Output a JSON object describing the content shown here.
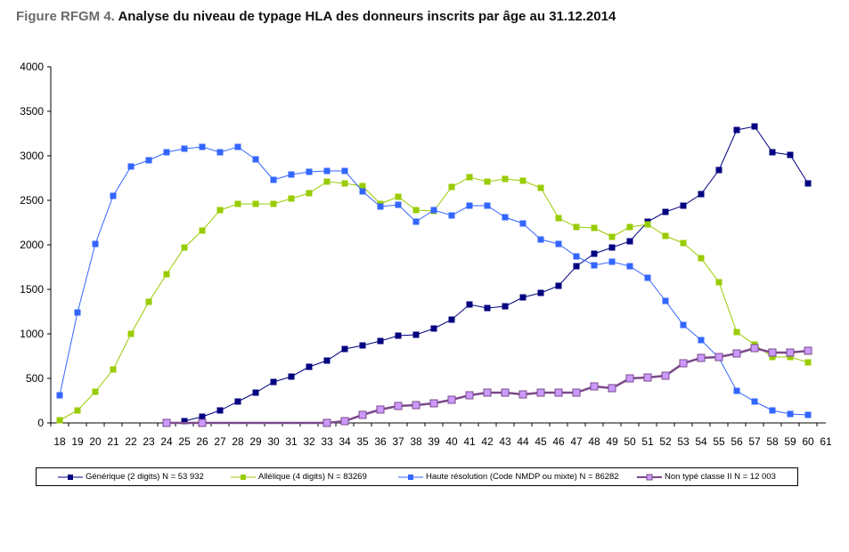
{
  "figure": {
    "label": "Figure RFGM 4.",
    "title": "Analyse du niveau de typage HLA des donneurs inscrits par âge au 31.12.2014"
  },
  "chart_data": {
    "type": "line",
    "title": "Analyse du niveau de typage HLA des donneurs inscrits par âge au 31.12.2014",
    "xlabel": "",
    "ylabel": "",
    "x": [
      18,
      19,
      20,
      21,
      22,
      23,
      24,
      25,
      26,
      27,
      28,
      29,
      30,
      31,
      32,
      33,
      34,
      35,
      36,
      37,
      38,
      39,
      40,
      41,
      42,
      43,
      44,
      45,
      46,
      47,
      48,
      49,
      50,
      51,
      52,
      53,
      54,
      55,
      56,
      57,
      58,
      59,
      60,
      61
    ],
    "xlim": [
      18,
      61
    ],
    "ylim": [
      0,
      4000
    ],
    "yticks": [
      0,
      500,
      1000,
      1500,
      2000,
      2500,
      3000,
      3500,
      4000
    ],
    "grid": false,
    "legend_position": "bottom",
    "series": [
      {
        "name": "Générique (2 digits) N = 53 932",
        "color": "#000080",
        "marker": "square",
        "x": [
          25,
          26,
          27,
          28,
          29,
          30,
          31,
          32,
          33,
          34,
          35,
          36,
          37,
          38,
          39,
          40,
          41,
          42,
          43,
          44,
          45,
          46,
          47,
          48,
          49,
          50,
          51,
          52,
          53,
          54,
          55,
          56,
          57,
          58,
          59,
          60
        ],
        "values": [
          20,
          70,
          140,
          240,
          340,
          460,
          520,
          630,
          700,
          830,
          870,
          920,
          980,
          990,
          1060,
          1160,
          1330,
          1290,
          1310,
          1410,
          1460,
          1540,
          1760,
          1900,
          1970,
          2040,
          2260,
          2370,
          2440,
          2570,
          2840,
          3290,
          3330,
          3040,
          3010,
          2690
        ]
      },
      {
        "name": "Allélique (4 digits) N = 83269",
        "color": "#99CC00",
        "marker": "square",
        "x": [
          18,
          19,
          20,
          21,
          22,
          23,
          24,
          25,
          26,
          27,
          28,
          29,
          30,
          31,
          32,
          33,
          34,
          35,
          36,
          37,
          38,
          39,
          40,
          41,
          42,
          43,
          44,
          45,
          46,
          47,
          48,
          49,
          50,
          51,
          52,
          53,
          54,
          55,
          56,
          57,
          58,
          59,
          60
        ],
        "values": [
          30,
          140,
          350,
          600,
          1000,
          1360,
          1670,
          1970,
          2160,
          2390,
          2460,
          2460,
          2460,
          2520,
          2580,
          2710,
          2690,
          2660,
          2460,
          2540,
          2390,
          2380,
          2650,
          2760,
          2710,
          2740,
          2720,
          2640,
          2300,
          2200,
          2190,
          2090,
          2200,
          2230,
          2100,
          2020,
          1850,
          1580,
          1020,
          880,
          740,
          740,
          680
        ]
      },
      {
        "name": "Haute résolution (Code NMDP ou mixte) N = 86282",
        "color": "#3366FF",
        "marker": "square",
        "x": [
          18,
          19,
          20,
          21,
          22,
          23,
          24,
          25,
          26,
          27,
          28,
          29,
          30,
          31,
          32,
          33,
          34,
          35,
          36,
          37,
          38,
          39,
          40,
          41,
          42,
          43,
          44,
          45,
          46,
          47,
          48,
          49,
          50,
          51,
          52,
          53,
          54,
          55,
          56,
          57,
          58,
          59,
          60
        ],
        "values": [
          310,
          1240,
          2010,
          2550,
          2880,
          2950,
          3040,
          3080,
          3100,
          3040,
          3100,
          2960,
          2730,
          2790,
          2820,
          2830,
          2830,
          2600,
          2430,
          2450,
          2260,
          2390,
          2330,
          2440,
          2440,
          2310,
          2240,
          2060,
          2010,
          1870,
          1770,
          1810,
          1760,
          1630,
          1370,
          1100,
          930,
          730,
          360,
          240,
          140,
          100,
          90
        ]
      },
      {
        "name": "Non typé classe II N = 12 003",
        "color": "#CC99FF",
        "line_color": "#7A4A8A",
        "marker": "square",
        "x": [
          24,
          26,
          33,
          34,
          35,
          36,
          37,
          38,
          39,
          40,
          41,
          42,
          43,
          44,
          45,
          46,
          47,
          48,
          49,
          50,
          51,
          52,
          53,
          54,
          55,
          56,
          57,
          58,
          59,
          60
        ],
        "values": [
          0,
          0,
          0,
          20,
          90,
          150,
          190,
          200,
          220,
          260,
          310,
          340,
          340,
          320,
          340,
          340,
          340,
          410,
          390,
          500,
          510,
          530,
          670,
          730,
          740,
          780,
          840,
          790,
          790,
          810
        ]
      }
    ]
  }
}
